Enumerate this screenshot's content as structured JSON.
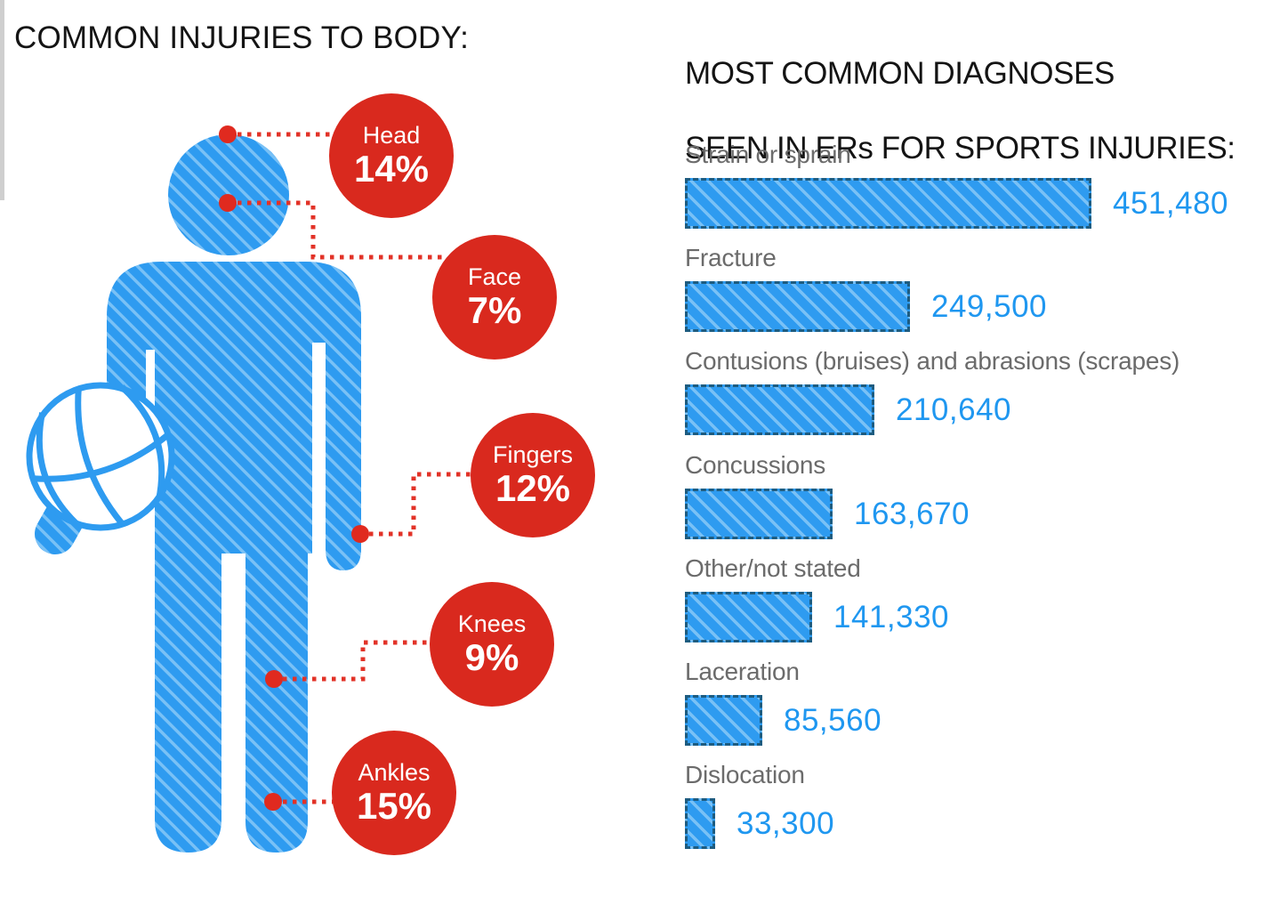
{
  "left_panel": {
    "title": "COMMON INJURIES TO BODY:",
    "injuries": [
      {
        "label": "Head",
        "value": "14%"
      },
      {
        "label": "Face",
        "value": "7%"
      },
      {
        "label": "Fingers",
        "value": "12%"
      },
      {
        "label": "Knees",
        "value": "9%"
      },
      {
        "label": "Ankles",
        "value": "15%"
      }
    ]
  },
  "right_panel": {
    "title_line1": "MOST COMMON DIAGNOSES",
    "title_line2": "SEEN IN ERs FOR SPORTS INJURIES:",
    "diagnoses": [
      {
        "label": "Strain or sprain",
        "value": 451480,
        "value_label": "451,480"
      },
      {
        "label": "Fracture",
        "value": 249500,
        "value_label": "249,500"
      },
      {
        "label": "Contusions (bruises) and abrasions (scrapes)",
        "value": 210640,
        "value_label": "210,640"
      },
      {
        "label": "Concussions",
        "value": 163670,
        "value_label": "163,670"
      },
      {
        "label": "Other/not stated",
        "value": 141330,
        "value_label": "141,330"
      },
      {
        "label": "Laceration",
        "value": 85560,
        "value_label": "85,560"
      },
      {
        "label": "Dislocation",
        "value": 33300,
        "value_label": "33,300"
      }
    ]
  },
  "colors": {
    "figure_blue": "#2E9BF0",
    "figure_stripe": "#79C1F6",
    "bar_fill": "#2E9BF0",
    "bar_stripe": "#79C1F6",
    "bar_border": "#1E5C80",
    "bubble_red": "#D9291E",
    "connector_red": "#E23227",
    "value_blue": "#1F97F0",
    "label_gray": "#6B6B6B",
    "title_black": "#141414"
  },
  "chart_data": [
    {
      "type": "bar",
      "orientation": "horizontal",
      "title": "MOST COMMON DIAGNOSES SEEN IN ERs FOR SPORTS INJURIES:",
      "categories": [
        "Strain or sprain",
        "Fracture",
        "Contusions (bruises) and abrasions (scrapes)",
        "Concussions",
        "Other/not stated",
        "Laceration",
        "Dislocation"
      ],
      "values": [
        451480,
        249500,
        210640,
        163670,
        141330,
        85560,
        33300
      ],
      "value_labels": [
        "451,480",
        "249,500",
        "210,640",
        "163,670",
        "141,330",
        "85,560",
        "33,300"
      ],
      "xlabel": "",
      "ylabel": "",
      "xlim": [
        0,
        460000
      ],
      "grid": false,
      "legend": false,
      "bar_color": "#2E9BF0"
    },
    {
      "type": "bar",
      "style": "body-map-callouts",
      "title": "COMMON INJURIES TO BODY:",
      "categories": [
        "Head",
        "Face",
        "Fingers",
        "Knees",
        "Ankles"
      ],
      "values": [
        14,
        7,
        12,
        9,
        15
      ],
      "unit": "%",
      "marker_color": "#D9291E"
    }
  ]
}
